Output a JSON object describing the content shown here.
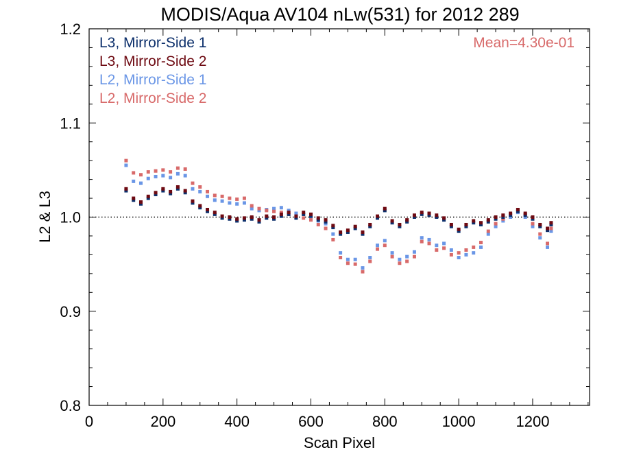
{
  "chart_data": {
    "type": "scatter",
    "title": "MODIS/Aqua AV104 nLw(531) for 2012 289",
    "xlabel": "Scan Pixel",
    "ylabel": "L2 & L3",
    "xlim": [
      0,
      1354
    ],
    "ylim": [
      0.8,
      1.2
    ],
    "x_ticks": [
      0,
      200,
      400,
      600,
      800,
      1000,
      1200
    ],
    "x_tick_labels": [
      "0",
      "200",
      "400",
      "600",
      "800",
      "1000",
      "1200"
    ],
    "y_ticks": [
      0.8,
      0.9,
      1.0,
      1.1,
      1.2
    ],
    "y_tick_labels": [
      "0.8",
      "0.9",
      "1.0",
      "1.1",
      "1.2"
    ],
    "reference_line": 1.0,
    "annotation": "Mean=4.30e-01",
    "annotation_color": "#d86a6a",
    "legend_position": "top-left",
    "series": [
      {
        "name": "L3, Mirror-Side 1",
        "color": "#0c2f6b",
        "x": [
          100,
          120,
          140,
          160,
          180,
          200,
          220,
          240,
          260,
          280,
          300,
          320,
          340,
          360,
          380,
          400,
          420,
          440,
          460,
          480,
          500,
          520,
          540,
          560,
          580,
          600,
          620,
          640,
          660,
          680,
          700,
          720,
          740,
          760,
          780,
          800,
          820,
          840,
          860,
          880,
          900,
          920,
          940,
          960,
          980,
          1000,
          1020,
          1040,
          1060,
          1080,
          1100,
          1120,
          1140,
          1160,
          1180,
          1200,
          1220,
          1240,
          1250
        ],
        "y": [
          1.028,
          1.018,
          1.014,
          1.02,
          1.024,
          1.028,
          1.025,
          1.03,
          1.026,
          1.015,
          1.01,
          1.006,
          1.003,
          0.999,
          0.998,
          0.996,
          0.997,
          0.998,
          0.995,
          0.999,
          0.998,
          1.001,
          1.003,
          0.999,
          1.003,
          1.001,
          0.997,
          0.995,
          0.989,
          0.982,
          0.984,
          0.988,
          0.982,
          0.99,
          0.999,
          1.007,
          0.994,
          0.99,
          0.995,
          1.0,
          1.003,
          1.002,
          1.0,
          0.997,
          0.99,
          0.985,
          0.99,
          0.994,
          0.992,
          0.995,
          0.998,
          1.0,
          1.002,
          1.006,
          1.002,
          0.998,
          0.99,
          0.986,
          0.992
        ]
      },
      {
        "name": "L3, Mirror-Side 2",
        "color": "#6e0a12",
        "x": [
          100,
          120,
          140,
          160,
          180,
          200,
          220,
          240,
          260,
          280,
          300,
          320,
          340,
          360,
          380,
          400,
          420,
          440,
          460,
          480,
          500,
          520,
          540,
          560,
          580,
          600,
          620,
          640,
          660,
          680,
          700,
          720,
          740,
          760,
          780,
          800,
          820,
          840,
          860,
          880,
          900,
          920,
          940,
          960,
          980,
          1000,
          1020,
          1040,
          1060,
          1080,
          1100,
          1120,
          1140,
          1160,
          1180,
          1200,
          1220,
          1240,
          1250
        ],
        "y": [
          1.03,
          1.02,
          1.016,
          1.022,
          1.026,
          1.03,
          1.027,
          1.032,
          1.028,
          1.017,
          1.012,
          1.008,
          1.005,
          1.001,
          1.0,
          0.998,
          0.999,
          1.0,
          0.997,
          1.001,
          1.0,
          1.003,
          1.005,
          1.001,
          1.005,
          1.003,
          0.999,
          0.997,
          0.991,
          0.984,
          0.986,
          0.99,
          0.984,
          0.992,
          1.001,
          1.009,
          0.996,
          0.992,
          0.997,
          1.002,
          1.005,
          1.004,
          1.002,
          0.999,
          0.992,
          0.987,
          0.992,
          0.996,
          0.994,
          0.997,
          1.0,
          1.002,
          1.004,
          1.008,
          1.004,
          1.0,
          0.992,
          0.988,
          0.994
        ]
      },
      {
        "name": "L2, Mirror-Side 1",
        "color": "#6a96e6",
        "x": [
          100,
          120,
          140,
          160,
          180,
          200,
          220,
          240,
          260,
          280,
          300,
          320,
          340,
          360,
          380,
          400,
          420,
          440,
          460,
          480,
          500,
          520,
          540,
          560,
          580,
          600,
          620,
          640,
          660,
          680,
          700,
          720,
          740,
          760,
          780,
          800,
          820,
          840,
          860,
          880,
          900,
          920,
          940,
          960,
          980,
          1000,
          1020,
          1040,
          1060,
          1080,
          1100,
          1120,
          1140,
          1160,
          1180,
          1200,
          1220,
          1240,
          1250
        ],
        "y": [
          1.055,
          1.038,
          1.036,
          1.041,
          1.043,
          1.044,
          1.042,
          1.046,
          1.044,
          1.03,
          1.027,
          1.022,
          1.018,
          1.017,
          1.015,
          1.014,
          1.015,
          1.009,
          1.007,
          1.008,
          1.009,
          1.01,
          1.007,
          1.004,
          1.003,
          1.0,
          0.996,
          0.993,
          0.982,
          0.962,
          0.955,
          0.955,
          0.946,
          0.957,
          0.97,
          0.975,
          0.962,
          0.955,
          0.958,
          0.963,
          0.978,
          0.976,
          0.97,
          0.972,
          0.965,
          0.957,
          0.96,
          0.962,
          0.968,
          0.982,
          0.99,
          0.996,
          1.0,
          1.005,
          1.0,
          0.99,
          0.978,
          0.968,
          0.985
        ]
      },
      {
        "name": "L2, Mirror-Side 2",
        "color": "#d86a6a",
        "x": [
          100,
          120,
          140,
          160,
          180,
          200,
          220,
          240,
          260,
          280,
          300,
          320,
          340,
          360,
          380,
          400,
          420,
          440,
          460,
          480,
          500,
          520,
          540,
          560,
          580,
          600,
          620,
          640,
          660,
          680,
          700,
          720,
          740,
          760,
          780,
          800,
          820,
          840,
          860,
          880,
          900,
          920,
          940,
          960,
          980,
          1000,
          1020,
          1040,
          1060,
          1080,
          1100,
          1120,
          1140,
          1160,
          1180,
          1200,
          1220,
          1240,
          1250
        ],
        "y": [
          1.06,
          1.047,
          1.045,
          1.048,
          1.049,
          1.05,
          1.048,
          1.052,
          1.051,
          1.036,
          1.032,
          1.027,
          1.023,
          1.022,
          1.02,
          1.019,
          1.02,
          1.012,
          1.009,
          1.007,
          1.006,
          1.005,
          1.003,
          1.0,
          0.999,
          0.997,
          0.992,
          0.988,
          0.976,
          0.957,
          0.951,
          0.95,
          0.942,
          0.953,
          0.966,
          0.97,
          0.958,
          0.951,
          0.953,
          0.958,
          0.974,
          0.972,
          0.965,
          0.967,
          0.96,
          0.962,
          0.965,
          0.968,
          0.973,
          0.985,
          0.993,
          0.998,
          1.003,
          1.008,
          1.003,
          0.993,
          0.982,
          0.972,
          0.988
        ]
      }
    ]
  }
}
